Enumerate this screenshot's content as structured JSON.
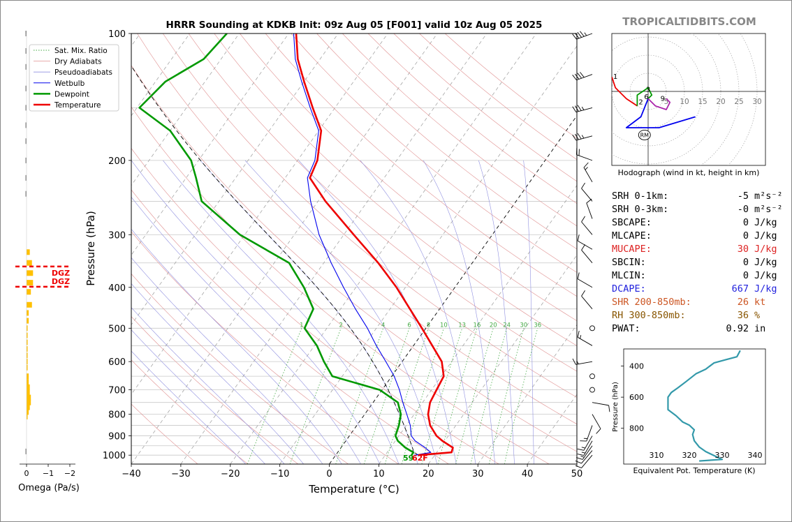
{
  "chart_data": [
    {
      "type": "line",
      "title": "HRRR Sounding at KDKB Init: 09z Aug 05 [F001] valid 10z Aug 05 2025",
      "xlabel": "Temperature (°C)",
      "ylabel": "Pressure (hPa)",
      "xlim": [
        -40,
        50
      ],
      "ylim": [
        1050,
        100
      ],
      "y_scale": "log",
      "skew": true,
      "x_ticks": [
        "−40",
        "−30",
        "−20",
        "−10",
        "0",
        "10",
        "20",
        "30",
        "40",
        "50"
      ],
      "y_ticks": [
        "100",
        "200",
        "300",
        "400",
        "500",
        "600",
        "700",
        "800",
        "900",
        "1000"
      ],
      "legend_position": "top-left",
      "legend": [
        "Sat. Mix. Ratio",
        "Dry Adiabats",
        "Pseudoadiabats",
        "Wetbulb",
        "Dewpoint",
        "Temperature"
      ],
      "mixing_ratio_labels": [
        "1",
        "2",
        "4",
        "6",
        "8",
        "10",
        "13",
        "16",
        "20",
        "24",
        "30",
        "36"
      ],
      "surface_labels": {
        "dewpoint": "59",
        "temperature": "62F"
      },
      "series": [
        {
          "name": "Temperature",
          "color": "#ee0000",
          "points": [
            [
              1000,
              16.7
            ],
            [
              985,
              23.0
            ],
            [
              960,
              22.6
            ],
            [
              925,
              19.5
            ],
            [
              900,
              17.6
            ],
            [
              850,
              14.8
            ],
            [
              800,
              12.8
            ],
            [
              750,
              11.5
            ],
            [
              700,
              11.0
            ],
            [
              650,
              10.5
            ],
            [
              600,
              8.0
            ],
            [
              550,
              3.8
            ],
            [
              500,
              -0.8
            ],
            [
              450,
              -6.0
            ],
            [
              400,
              -11.8
            ],
            [
              350,
              -19.0
            ],
            [
              300,
              -28.0
            ],
            [
              250,
              -38.5
            ],
            [
              220,
              -45.0
            ],
            [
              200,
              -46.0
            ],
            [
              170,
              -49.5
            ],
            [
              150,
              -54.5
            ],
            [
              130,
              -60.0
            ],
            [
              115,
              -64.5
            ],
            [
              100,
              -68.5
            ]
          ]
        },
        {
          "name": "Dewpoint",
          "color": "#009900",
          "points": [
            [
              1000,
              15.3
            ],
            [
              985,
              15.3
            ],
            [
              960,
              13.0
            ],
            [
              925,
              10.5
            ],
            [
              900,
              9.3
            ],
            [
              850,
              8.5
            ],
            [
              800,
              7.3
            ],
            [
              750,
              5.0
            ],
            [
              700,
              -0.5
            ],
            [
              650,
              -12.0
            ],
            [
              600,
              -15.8
            ],
            [
              550,
              -19.5
            ],
            [
              500,
              -24.5
            ],
            [
              450,
              -25.5
            ],
            [
              400,
              -30.5
            ],
            [
              350,
              -37.0
            ],
            [
              300,
              -51.0
            ],
            [
              250,
              -63.5
            ],
            [
              220,
              -68.0
            ],
            [
              200,
              -71.5
            ],
            [
              170,
              -80.0
            ],
            [
              150,
              -89.5
            ],
            [
              130,
              -88.0
            ],
            [
              115,
              -83.5
            ],
            [
              100,
              -82.5
            ]
          ]
        },
        {
          "name": "Wetbulb",
          "color": "#0000ee",
          "points": [
            [
              1000,
              16.0
            ],
            [
              985,
              18.8
            ],
            [
              960,
              17.0
            ],
            [
              925,
              14.0
            ],
            [
              900,
              12.5
            ],
            [
              850,
              10.8
            ],
            [
              800,
              8.5
            ],
            [
              750,
              6.0
            ],
            [
              700,
              3.5
            ],
            [
              650,
              0.5
            ],
            [
              600,
              -3.3
            ],
            [
              550,
              -7.5
            ],
            [
              500,
              -11.8
            ],
            [
              450,
              -17.0
            ],
            [
              400,
              -22.5
            ],
            [
              350,
              -28.5
            ],
            [
              300,
              -35.0
            ],
            [
              250,
              -41.5
            ],
            [
              220,
              -45.5
            ],
            [
              200,
              -46.5
            ],
            [
              170,
              -50.0
            ],
            [
              150,
              -55.0
            ],
            [
              130,
              -60.5
            ],
            [
              115,
              -65.0
            ],
            [
              100,
              -69.0
            ]
          ]
        }
      ],
      "reference_lines": [
        "0 °C isotherm",
        "parcel path"
      ]
    },
    {
      "type": "scatter",
      "title": "Hodograph (wind in kt, height in km)",
      "ring_labels": [
        "5",
        "10",
        "15",
        "20",
        "25",
        "30"
      ],
      "height_labels": [
        "1",
        "2",
        "3",
        "6",
        "9"
      ],
      "markers": [
        "LM",
        "RM"
      ],
      "segments": [
        {
          "name": "0-1 km",
          "color": "#ee0000",
          "points": [
            [
              -10,
              4
            ],
            [
              -9,
              1
            ],
            [
              -6,
              -2
            ],
            [
              -3,
              -4
            ]
          ]
        },
        {
          "name": "1-3 km",
          "color": "#009900",
          "points": [
            [
              -3,
              -4
            ],
            [
              -3,
              -1
            ],
            [
              0,
              1
            ],
            [
              1,
              -1
            ],
            [
              0,
              -2
            ]
          ]
        },
        {
          "name": "3-6 km",
          "color": "#0000ee",
          "points": [
            [
              0,
              -2
            ],
            [
              -2,
              -7
            ],
            [
              -6,
              -10
            ],
            [
              3,
              -10
            ],
            [
              13,
              -7
            ]
          ]
        },
        {
          "name": "6-9 km",
          "color": "#aa22aa",
          "points": [
            [
              0,
              -2
            ],
            [
              2,
              -4
            ],
            [
              5,
              -5
            ],
            [
              6,
              -3
            ],
            [
              5,
              -2
            ]
          ]
        }
      ]
    },
    {
      "type": "line",
      "title": "",
      "xlabel": "Equivalent Pot. Temperature (K)",
      "ylabel": "Pressure (hPa)",
      "x_ticks": [
        "310",
        "320",
        "330",
        "340"
      ],
      "y_ticks": [
        "400",
        "600",
        "800"
      ],
      "series": [
        {
          "name": "",
          "color": "#3399aa",
          "points": [
            [
              335.5,
              300
            ],
            [
              334.5,
              340
            ],
            [
              331,
              360
            ],
            [
              327.5,
              380
            ],
            [
              325,
              420
            ],
            [
              322,
              450
            ],
            [
              319,
              500
            ],
            [
              316.5,
              540
            ],
            [
              314.5,
              570
            ],
            [
              313.5,
              600
            ],
            [
              313.5,
              650
            ],
            [
              313.5,
              680
            ],
            [
              316,
              720
            ],
            [
              318,
              760
            ],
            [
              320,
              780
            ],
            [
              321.5,
              810
            ],
            [
              321,
              840
            ],
            [
              321.5,
              880
            ],
            [
              323,
              920
            ],
            [
              325,
              950
            ],
            [
              328,
              980
            ],
            [
              330,
              1000
            ],
            [
              323,
              1010
            ]
          ]
        }
      ]
    },
    {
      "type": "bar",
      "title": "",
      "xlabel": "Omega (Pa/s)",
      "x_ticks": [
        "0",
        "−1",
        "−2"
      ],
      "dgz_label": "DGZ",
      "orientation": "horizontal",
      "values": [
        0.05,
        0.05,
        0.05,
        0.05,
        0.05,
        0.05,
        0.05,
        0.05,
        0.05,
        0.05,
        -0.15,
        -0.25,
        -0.3,
        -0.3,
        -0.2,
        -0.25,
        -0.1,
        -0.1,
        -0.05,
        -0.05,
        -0.05,
        -0.05,
        -0.05,
        -0.05,
        -0.05,
        -0.1,
        -0.1,
        -0.15,
        -0.15,
        -0.2,
        -0.2,
        -0.15,
        -0.1,
        -0.05,
        0.05
      ],
      "levels": [
        100,
        110,
        120,
        135,
        150,
        165,
        180,
        200,
        220,
        240,
        330,
        350,
        370,
        390,
        410,
        440,
        460,
        480,
        500,
        520,
        540,
        560,
        580,
        600,
        620,
        650,
        670,
        690,
        710,
        730,
        750,
        770,
        790,
        810,
        980
      ]
    }
  ],
  "header": {
    "site": "TROPICALTIDBITS.COM"
  },
  "hodograph_rings_kt": [
    5,
    10,
    15,
    20,
    25,
    30
  ],
  "hodograph_markers": {
    "left_mover": [
      -16,
      9
    ],
    "right_mover": [
      -1,
      -12
    ]
  },
  "stats": [
    {
      "label": "SRH 0-1km:",
      "value": "-5",
      "unit": "m²s⁻²",
      "color": "#000000"
    },
    {
      "label": "SRH 0-3km:",
      "value": "-0",
      "unit": "m²s⁻²",
      "color": "#000000"
    },
    {
      "label": "SBCAPE:",
      "value": "0",
      "unit": "J/kg",
      "color": "#000000"
    },
    {
      "label": "MLCAPE:",
      "value": "0",
      "unit": "J/kg",
      "color": "#000000"
    },
    {
      "label": "MUCAPE:",
      "value": "30",
      "unit": "J/kg",
      "color": "#dd2222"
    },
    {
      "label": "SBCIN:",
      "value": "0",
      "unit": "J/kg",
      "color": "#000000"
    },
    {
      "label": "MLCIN:",
      "value": "0",
      "unit": "J/kg",
      "color": "#000000"
    },
    {
      "label": "DCAPE:",
      "value": "667",
      "unit": "J/kg",
      "color": "#2222dd"
    },
    {
      "label": "SHR 200-850mb:",
      "value": "26",
      "unit": "kt",
      "color": "#cc5522"
    },
    {
      "label": "RH 300-850mb:",
      "value": "36",
      "unit": "%",
      "color": "#885500"
    },
    {
      "label": "PWAT:",
      "value": "0.92",
      "unit": "in",
      "color": "#000000"
    }
  ],
  "colors": {
    "temperature": "#ee0000",
    "dewpoint": "#009900",
    "wetbulb": "#0000ee",
    "theta_e": "#3399aa",
    "omega": "#ffc000",
    "mixing_ratio": "#44aa44"
  },
  "wind_barbs": [
    {
      "p": 100,
      "dir": 250,
      "kt": 45
    },
    {
      "p": 125,
      "dir": 250,
      "kt": 40
    },
    {
      "p": 150,
      "dir": 255,
      "kt": 35
    },
    {
      "p": 175,
      "dir": 255,
      "kt": 35
    },
    {
      "p": 200,
      "dir": 290,
      "kt": 20
    },
    {
      "p": 225,
      "dir": 330,
      "kt": 15
    },
    {
      "p": 250,
      "dir": 320,
      "kt": 10
    },
    {
      "p": 275,
      "dir": 340,
      "kt": 10
    },
    {
      "p": 300,
      "dir": 320,
      "kt": 10
    },
    {
      "p": 325,
      "dir": 300,
      "kt": 10
    },
    {
      "p": 350,
      "dir": 320,
      "kt": 10
    },
    {
      "p": 400,
      "dir": 300,
      "kt": 10
    },
    {
      "p": 450,
      "dir": 320,
      "kt": 10
    },
    {
      "p": 500,
      "dir": 0,
      "kt": 0
    },
    {
      "p": 550,
      "dir": 300,
      "kt": 15
    },
    {
      "p": 600,
      "dir": 260,
      "kt": 15
    },
    {
      "p": 650,
      "dir": 0,
      "kt": 0
    },
    {
      "p": 700,
      "dir": 0,
      "kt": 0
    },
    {
      "p": 750,
      "dir": 100,
      "kt": 10
    },
    {
      "p": 800,
      "dir": 150,
      "kt": 10
    },
    {
      "p": 850,
      "dir": 200,
      "kt": 15
    },
    {
      "p": 900,
      "dir": 210,
      "kt": 15
    },
    {
      "p": 925,
      "dir": 210,
      "kt": 15
    },
    {
      "p": 950,
      "dir": 215,
      "kt": 15
    },
    {
      "p": 975,
      "dir": 220,
      "kt": 10
    },
    {
      "p": 1000,
      "dir": 220,
      "kt": 10
    }
  ]
}
